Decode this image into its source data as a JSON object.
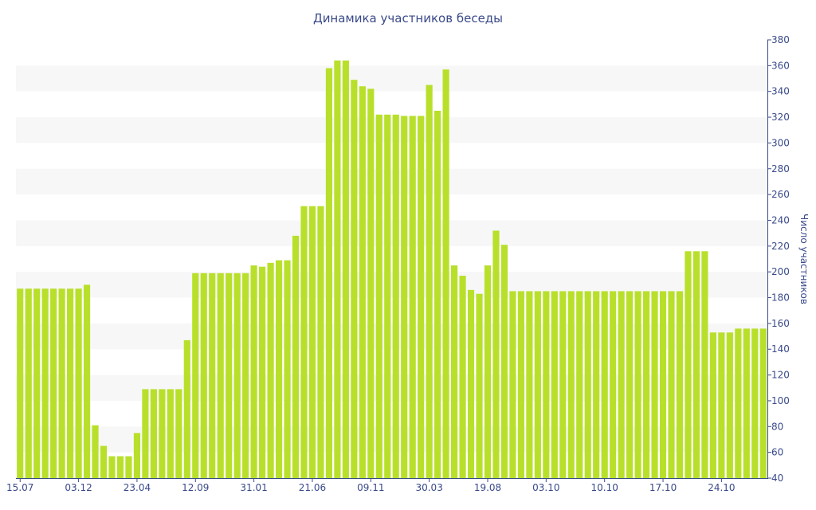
{
  "colors": {
    "bar": "#b8e02a",
    "band": "#f7f7f7",
    "axis": "#3a4a8a",
    "text": "#3a4a8a"
  },
  "chart_data": {
    "type": "bar",
    "title": "Динамика участников беседы",
    "xlabel": "",
    "ylabel": "Число участников",
    "ylim": [
      40,
      380
    ],
    "yaxis_position": "right",
    "yticks": [
      40,
      60,
      80,
      100,
      120,
      140,
      160,
      180,
      200,
      220,
      240,
      260,
      280,
      300,
      320,
      340,
      360,
      380
    ],
    "grid": "alternating horizontal bands",
    "xtick_labels": [
      {
        "label": "15.07",
        "bar_index": 0
      },
      {
        "label": "03.12",
        "bar_index": 7
      },
      {
        "label": "23.04",
        "bar_index": 14
      },
      {
        "label": "12.09",
        "bar_index": 21
      },
      {
        "label": "31.01",
        "bar_index": 28
      },
      {
        "label": "21.06",
        "bar_index": 35
      },
      {
        "label": "09.11",
        "bar_index": 42
      },
      {
        "label": "30.03",
        "bar_index": 49
      },
      {
        "label": "19.08",
        "bar_index": 56
      },
      {
        "label": "03.10",
        "bar_index": 63
      },
      {
        "label": "10.10",
        "bar_index": 70
      },
      {
        "label": "17.10",
        "bar_index": 77
      },
      {
        "label": "24.10",
        "bar_index": 84
      }
    ],
    "values": [
      187,
      187,
      187,
      187,
      187,
      187,
      187,
      187,
      190,
      81,
      65,
      57,
      57,
      57,
      75,
      109,
      109,
      109,
      109,
      109,
      147,
      199,
      199,
      199,
      199,
      199,
      199,
      199,
      205,
      204,
      207,
      209,
      209,
      228,
      251,
      251,
      251,
      358,
      364,
      364,
      349,
      344,
      342,
      322,
      322,
      322,
      321,
      321,
      321,
      345,
      325,
      357,
      205,
      197,
      186,
      183,
      205,
      232,
      221,
      185,
      185,
      185,
      185,
      185,
      185,
      185,
      185,
      185,
      185,
      185,
      185,
      185,
      185,
      185,
      185,
      185,
      185,
      185,
      185,
      185,
      216,
      216,
      216,
      153,
      153,
      153,
      156,
      156,
      156,
      156
    ]
  }
}
